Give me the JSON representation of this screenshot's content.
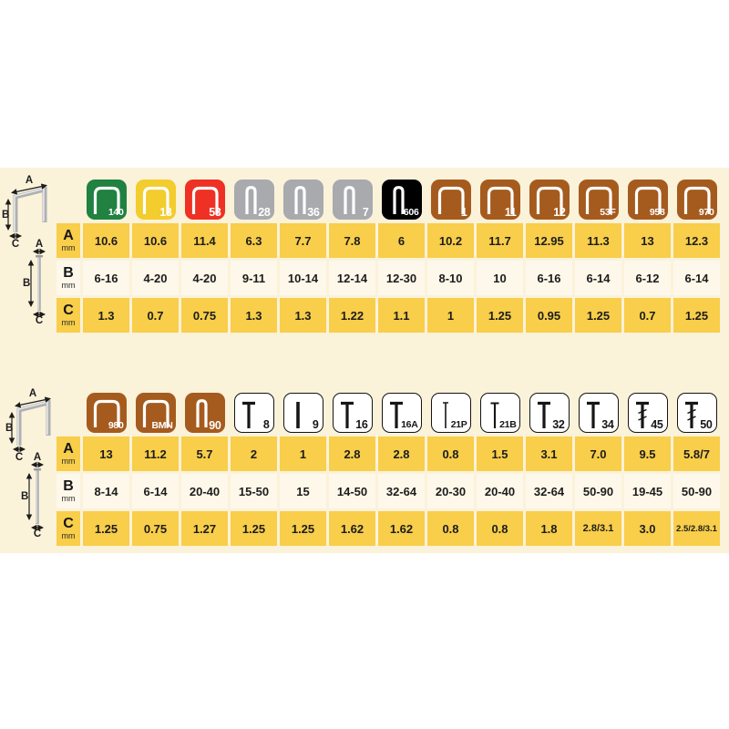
{
  "colors": {
    "page": "#ffffff",
    "panel": "#fbf2da",
    "row_yellow": "#f8ce4a",
    "row_cream": "#fdf8ea",
    "text": "#1c1c1c",
    "tile_green": "#208140",
    "tile_yellow": "#f3cc2d",
    "tile_red": "#ee3124",
    "tile_gray": "#a8aaad",
    "tile_black": "#000000",
    "tile_brown": "#a55b1e",
    "tile_white": "#ffffff"
  },
  "diagram": {
    "a": "A",
    "b": "B",
    "c": "C"
  },
  "row_headers": [
    {
      "letter": "A",
      "unit": "mm"
    },
    {
      "letter": "B",
      "unit": "mm"
    },
    {
      "letter": "C",
      "unit": "mm"
    }
  ],
  "chart_data": [
    {
      "type": "table",
      "row_labels": [
        "A mm",
        "B mm",
        "C mm"
      ],
      "columns": [
        {
          "label": "140",
          "color": "green",
          "glyph": "staple-wide",
          "values": [
            "10.6",
            "6-16",
            "1.3"
          ]
        },
        {
          "label": "13",
          "color": "yellow",
          "glyph": "staple-wide",
          "values": [
            "10.6",
            "4-20",
            "0.7"
          ]
        },
        {
          "label": "53",
          "color": "red",
          "glyph": "staple-wide",
          "values": [
            "11.4",
            "4-20",
            "0.75"
          ]
        },
        {
          "label": "28",
          "color": "gray",
          "glyph": "staple-narrow",
          "values": [
            "6.3",
            "9-11",
            "1.3"
          ]
        },
        {
          "label": "36",
          "color": "gray",
          "glyph": "staple-narrow",
          "values": [
            "7.7",
            "10-14",
            "1.3"
          ]
        },
        {
          "label": "7",
          "color": "gray",
          "glyph": "staple-narrow",
          "values": [
            "7.8",
            "12-14",
            "1.22"
          ]
        },
        {
          "label": "606",
          "color": "black",
          "glyph": "staple-narrow",
          "values": [
            "6",
            "12-30",
            "1.1"
          ]
        },
        {
          "label": "1",
          "color": "brown",
          "glyph": "staple-wide",
          "values": [
            "10.2",
            "8-10",
            "1"
          ]
        },
        {
          "label": "11",
          "color": "brown",
          "glyph": "staple-wide",
          "values": [
            "11.7",
            "10",
            "1.25"
          ]
        },
        {
          "label": "12",
          "color": "brown",
          "glyph": "staple-wide",
          "values": [
            "12.95",
            "6-16",
            "0.95"
          ]
        },
        {
          "label": "53F",
          "color": "brown",
          "glyph": "staple-wide",
          "values": [
            "11.3",
            "6-14",
            "1.25"
          ]
        },
        {
          "label": "958",
          "color": "brown",
          "glyph": "staple-wide",
          "values": [
            "13",
            "6-12",
            "0.7"
          ]
        },
        {
          "label": "970",
          "color": "brown",
          "glyph": "staple-wide",
          "values": [
            "12.3",
            "6-14",
            "1.25"
          ]
        }
      ]
    },
    {
      "type": "table",
      "row_labels": [
        "A mm",
        "B mm",
        "C mm"
      ],
      "columns": [
        {
          "label": "980",
          "color": "brown",
          "glyph": "staple-wide",
          "values": [
            "13",
            "8-14",
            "1.25"
          ]
        },
        {
          "label": "BMN",
          "color": "brown",
          "glyph": "staple-wide",
          "values": [
            "11.2",
            "6-14",
            "0.75"
          ]
        },
        {
          "label": "90",
          "color": "brown",
          "glyph": "staple-narrow",
          "values": [
            "5.7",
            "20-40",
            "1.27"
          ]
        },
        {
          "label": "8",
          "color": "white",
          "glyph": "nail",
          "values": [
            "2",
            "15-50",
            "1.25"
          ]
        },
        {
          "label": "9",
          "color": "white",
          "glyph": "pin",
          "values": [
            "1",
            "15",
            "1.25"
          ]
        },
        {
          "label": "16",
          "color": "white",
          "glyph": "nail",
          "values": [
            "2.8",
            "14-50",
            "1.62"
          ]
        },
        {
          "label": "16A",
          "color": "white",
          "glyph": "nail",
          "values": [
            "2.8",
            "32-64",
            "1.62"
          ]
        },
        {
          "label": "21P",
          "color": "white",
          "glyph": "pin-thin",
          "values": [
            "0.8",
            "20-30",
            "0.8"
          ]
        },
        {
          "label": "21B",
          "color": "white",
          "glyph": "nail-thin",
          "values": [
            "1.5",
            "20-40",
            "0.8"
          ]
        },
        {
          "label": "32",
          "color": "white",
          "glyph": "nail",
          "values": [
            "3.1",
            "32-64",
            "1.8"
          ]
        },
        {
          "label": "34",
          "color": "white",
          "glyph": "nail",
          "values": [
            "7.0",
            "50-90",
            "2.8/3.1"
          ]
        },
        {
          "label": "45",
          "color": "white",
          "glyph": "nail-hatched",
          "values": [
            "9.5",
            "19-45",
            "3.0"
          ]
        },
        {
          "label": "50",
          "color": "white",
          "glyph": "nail-hatched",
          "values": [
            "5.8/7",
            "50-90",
            "2.5/2.8/3.1"
          ]
        }
      ]
    }
  ]
}
